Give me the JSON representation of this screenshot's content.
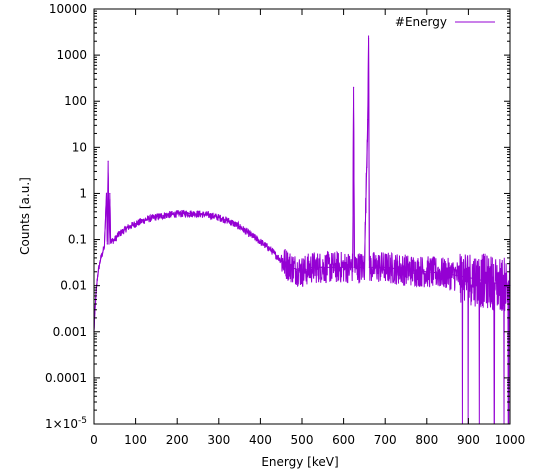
{
  "chart_data": {
    "type": "line",
    "title": "",
    "xlabel": "Energy [keV]",
    "ylabel": "Counts [a.u.]",
    "xlim": [
      0,
      1000
    ],
    "ylim": [
      1e-05,
      10000
    ],
    "yscale": "log",
    "grid": false,
    "legend_position": "top-right",
    "x_ticks": [
      {
        "value": 0,
        "label": "0"
      },
      {
        "value": 100,
        "label": "100"
      },
      {
        "value": 200,
        "label": "200"
      },
      {
        "value": 300,
        "label": "300"
      },
      {
        "value": 400,
        "label": "400"
      },
      {
        "value": 500,
        "label": "500"
      },
      {
        "value": 600,
        "label": "600"
      },
      {
        "value": 700,
        "label": "700"
      },
      {
        "value": 800,
        "label": "800"
      },
      {
        "value": 900,
        "label": "900"
      },
      {
        "value": 1000,
        "label": "1000"
      }
    ],
    "y_ticks": [
      {
        "value": 10000,
        "label": "10000"
      },
      {
        "value": 1000,
        "label": "1000"
      },
      {
        "value": 100,
        "label": "100"
      },
      {
        "value": 10,
        "label": "10"
      },
      {
        "value": 1,
        "label": "1"
      },
      {
        "value": 0.1,
        "label": "0.1"
      },
      {
        "value": 0.01,
        "label": "0.01"
      },
      {
        "value": 0.001,
        "label": "0.001"
      },
      {
        "value": 0.0001,
        "label": "0.0001"
      },
      {
        "value": 1e-05,
        "label": "1×10",
        "superscript": "-5"
      }
    ],
    "series": [
      {
        "name": "#Energy",
        "color": "#9400d3",
        "x": [
          0,
          2,
          4,
          6,
          8,
          10,
          15,
          20,
          25,
          30,
          32,
          34,
          36,
          38,
          40,
          50,
          60,
          80,
          100,
          125,
          150,
          175,
          200,
          225,
          250,
          275,
          300,
          325,
          350,
          375,
          400,
          425,
          450,
          475,
          500,
          525,
          550,
          575,
          600,
          622,
          624,
          626,
          630,
          650,
          658,
          660,
          662,
          664,
          670,
          700,
          750,
          800,
          850,
          900,
          950,
          1000
        ],
        "y": [
          0.001,
          0.0025,
          0.005,
          0.009,
          0.014,
          0.02,
          0.035,
          0.05,
          0.07,
          1,
          0.08,
          5,
          0.08,
          1,
          0.09,
          0.1,
          0.13,
          0.18,
          0.22,
          0.27,
          0.31,
          0.34,
          0.36,
          0.37,
          0.36,
          0.34,
          0.3,
          0.25,
          0.19,
          0.13,
          0.09,
          0.06,
          0.035,
          0.025,
          0.02,
          0.025,
          0.025,
          0.025,
          0.025,
          0.025,
          200,
          0.025,
          0.025,
          0.025,
          40,
          2300,
          0.025,
          0.025,
          0.025,
          0.025,
          0.022,
          0.02,
          0.018,
          0.015,
          0.012,
          0.01
        ]
      }
    ]
  }
}
